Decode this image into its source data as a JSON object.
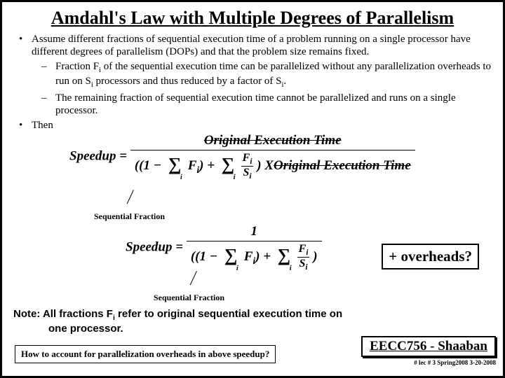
{
  "title": "Amdahl's Law with Multiple Degrees of Parallelism",
  "b1": "Assume different fractions of sequential execution time of a problem running on a single processor have different degrees of parallelism (DOPs) and that the problem size remains fixed.",
  "s1a": "Fraction  F",
  "s1b": " of the sequential execution time can be parallelized without any parallelization overheads to run on S",
  "s1c": " processors and thus reduced by a factor of S",
  "s2": "The remaining fraction of sequential execution time cannot be parallelized and runs on a single processor.",
  "b2": "Then",
  "speedup": "Speedup",
  "origExec": "Original Execution Time",
  "origExecStrike": "Original Execution Time",
  "seqFrac": "Sequential Fraction",
  "overheads": "+ overheads?",
  "note1": "Note:  All fractions F",
  "note2": " refer to original sequential execution time on",
  "note3": "one processor.",
  "question": "How to account for parallelization overheads in above speedup?",
  "footerMain": "EECC756 - Shaaban",
  "footerSub": "#  lec # 3   Spring2008  3-20-2008",
  "F": "F",
  "S": "S",
  "i": "i",
  "X": "X",
  "one": "1",
  "eq": " = ",
  "plus": " + ",
  "minus": "−",
  "dot": "•",
  "dash": "–",
  "period": ".",
  "lparen": "((1 ",
  "sigma": "∑"
}
